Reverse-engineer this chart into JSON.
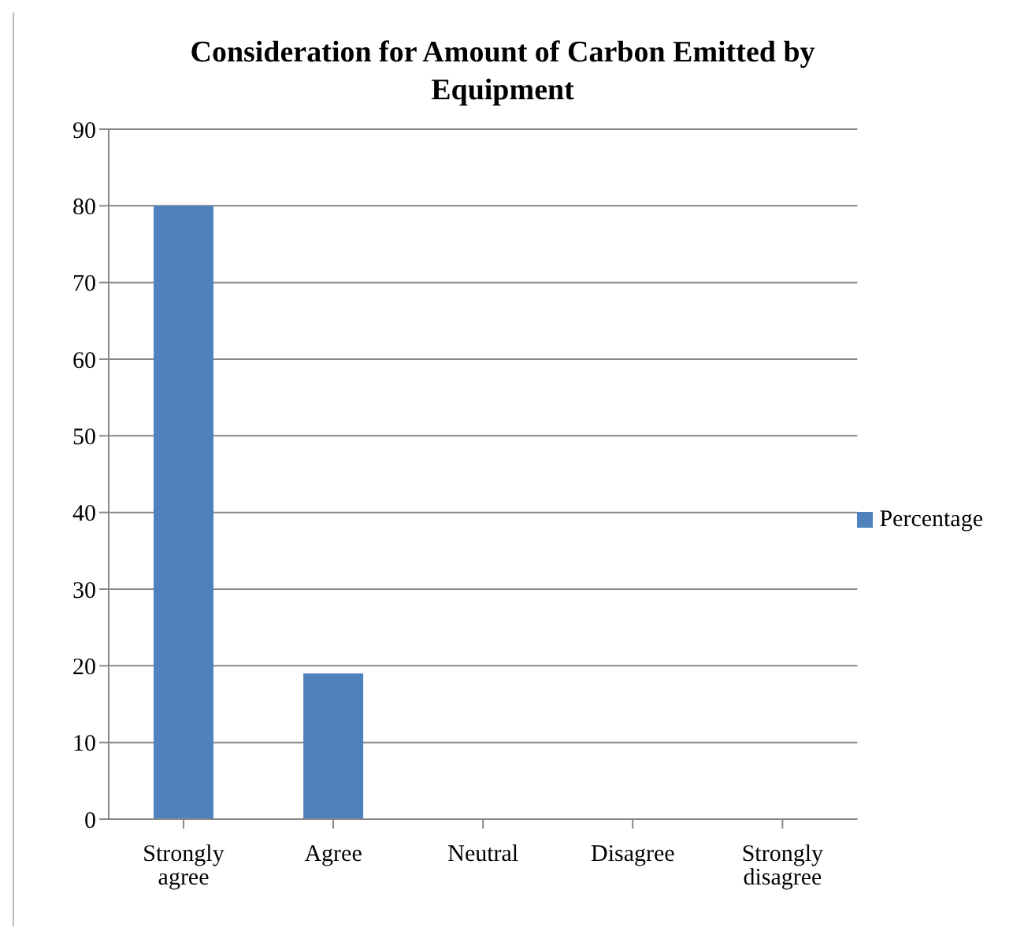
{
  "chart_data": {
    "type": "bar",
    "title": "Consideration for Amount of Carbon Emitted by Equipment",
    "categories": [
      "Strongly agree",
      "Agree",
      "Neutral",
      "Disagree",
      "Strongly disagree"
    ],
    "series": [
      {
        "name": "Percentage",
        "color": "#4f81bd",
        "values": [
          80,
          19,
          0,
          0,
          0
        ]
      }
    ],
    "ylim": [
      0,
      90
    ],
    "yticks": [
      0,
      10,
      20,
      30,
      40,
      50,
      60,
      70,
      80,
      90
    ],
    "grid": "y",
    "legend": "right"
  }
}
